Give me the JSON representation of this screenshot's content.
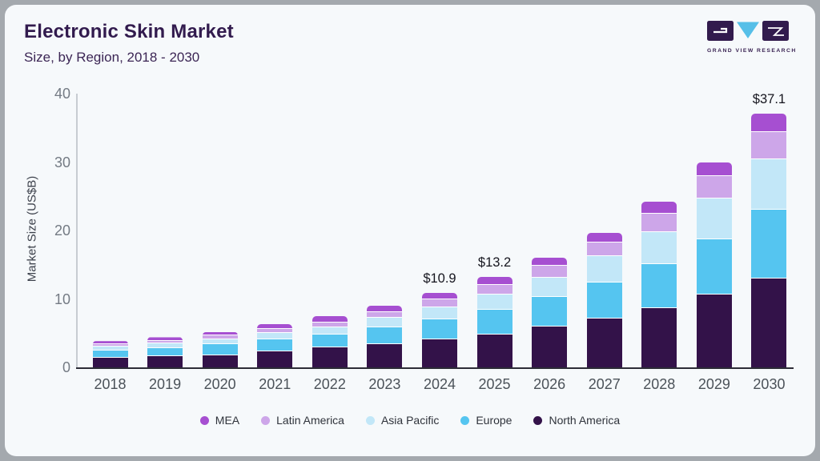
{
  "header": {
    "title": "Electronic Skin Market",
    "subtitle": "Size, by Region, 2018 - 2030"
  },
  "logo": {
    "brand": "GRAND VIEW RESEARCH",
    "block_color": "#321b4d",
    "triangle_color": "#56bfe8"
  },
  "colors": {
    "card_bg": "#f6f9fb",
    "frame_bg": "#a4a9ae",
    "title_text": "#321b4e",
    "axis_line": "#c7ccd2",
    "baseline": "#2c2c36"
  },
  "chart_data": {
    "type": "bar",
    "stacked": true,
    "title": "Electronic Skin Market Size, by Region, 2018 - 2030",
    "ylabel": "Market Size (US$B)",
    "xlabel": "",
    "ylim": [
      0,
      40
    ],
    "yticks": [
      0,
      10,
      20,
      30,
      40
    ],
    "grid": false,
    "categories": [
      "2018",
      "2019",
      "2020",
      "2021",
      "2022",
      "2023",
      "2024",
      "2025",
      "2026",
      "2027",
      "2028",
      "2029",
      "2030"
    ],
    "series": [
      {
        "name": "North America",
        "color": "#331249",
        "values": [
          1.4,
          1.6,
          1.8,
          2.35,
          2.9,
          3.4,
          4.1,
          4.8,
          6.0,
          7.1,
          8.7,
          10.6,
          13.0
        ]
      },
      {
        "name": "Europe",
        "color": "#55c5f0",
        "values": [
          1.05,
          1.25,
          1.55,
          1.75,
          1.85,
          2.5,
          2.9,
          3.6,
          4.3,
          5.3,
          6.4,
          8.1,
          10.1
        ]
      },
      {
        "name": "Asia Pacific",
        "color": "#c2e7f8",
        "values": [
          0.6,
          0.65,
          0.8,
          0.9,
          1.1,
          1.4,
          1.75,
          2.3,
          2.8,
          3.8,
          4.7,
          6.0,
          7.3
        ]
      },
      {
        "name": "Latin America",
        "color": "#cda6e9",
        "values": [
          0.35,
          0.4,
          0.5,
          0.65,
          0.7,
          0.8,
          1.15,
          1.35,
          1.7,
          2.05,
          2.7,
          3.2,
          4.0
        ]
      },
      {
        "name": "MEA",
        "color": "#a64fd1",
        "values": [
          0.45,
          0.5,
          0.55,
          0.7,
          0.9,
          0.9,
          1.0,
          1.15,
          1.25,
          1.4,
          1.7,
          2.1,
          2.7
        ]
      }
    ],
    "totals_shown": [
      {
        "category": "2024",
        "label": "$10.9"
      },
      {
        "category": "2025",
        "label": "$13.2"
      },
      {
        "category": "2030",
        "label": "$37.1"
      }
    ],
    "legend": {
      "position": "bottom",
      "order": [
        "MEA",
        "Latin America",
        "Asia Pacific",
        "Europe",
        "North America"
      ]
    }
  }
}
